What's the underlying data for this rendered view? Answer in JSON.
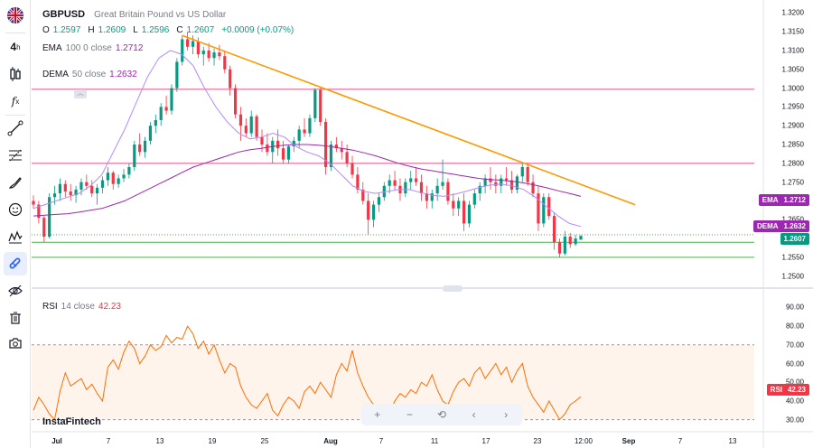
{
  "header": {
    "symbol": "GBPUSD",
    "description": "Great Britain Pound vs US Dollar",
    "ohlc": {
      "o_label": "O",
      "o": "1.2597",
      "h_label": "H",
      "h": "1.2609",
      "l_label": "L",
      "l": "1.2596",
      "c_label": "C",
      "c": "1.2607",
      "change": "+0.0009 (+0.07%)"
    }
  },
  "indicators": {
    "ema": {
      "name": "EMA",
      "params": "100  0  close",
      "value": "1.2712"
    },
    "dema": {
      "name": "DEMA",
      "params": "50  close",
      "value": "1.2632"
    },
    "rsi": {
      "name": "RSI",
      "params": "14  close",
      "value": "42.23"
    }
  },
  "price_tags": {
    "ema": {
      "label": "EMA",
      "value": "1.2712",
      "color": "#9c27b0"
    },
    "dema": {
      "label": "DEMA",
      "value": "1.2632",
      "color": "#9c27b0"
    },
    "last": {
      "value": "1.2607",
      "color": "#089981"
    },
    "rsi": {
      "label": "RSI",
      "value": "42.23",
      "color": "#f23645"
    }
  },
  "y_axis_price": [
    "1.3200",
    "1.3150",
    "1.3100",
    "1.3050",
    "1.3000",
    "1.2950",
    "1.2900",
    "1.2850",
    "1.2800",
    "1.2750",
    "1.2700",
    "1.2650",
    "1.2600",
    "1.2550",
    "1.2500"
  ],
  "y_axis_rsi": [
    "90.00",
    "80.00",
    "70.00",
    "60.00",
    "50.00",
    "40.00",
    "30.00"
  ],
  "x_axis": [
    "Jul",
    "7",
    "13",
    "19",
    "25",
    "Aug",
    "7",
    "11",
    "17",
    "23",
    "12:00",
    "Sep",
    "7",
    "13"
  ],
  "brand": "InstaFintech",
  "zoom_controls": [
    "+",
    "−",
    "⟲",
    "‹",
    "›"
  ],
  "colors": {
    "up": "#089981",
    "down": "#f23645",
    "ema": "#9c27b0",
    "trendline": "#ff9800",
    "hline": "#f06292",
    "support": "#4caf50",
    "rsi": "#ff6d00"
  },
  "chart_data": {
    "type": "candlestick",
    "symbol": "GBPUSD",
    "price_range": [
      1.248,
      1.322
    ],
    "rsi_range": [
      25,
      95
    ],
    "horizontal_levels": [
      1.2997,
      1.28,
      1.261,
      1.259,
      1.255
    ],
    "trendline": {
      "from": 1.314,
      "to": 1.269
    },
    "ohlc": [
      [
        1.27,
        1.2715,
        1.268,
        1.269
      ],
      [
        1.269,
        1.27,
        1.264,
        1.2655
      ],
      [
        1.2655,
        1.266,
        1.259,
        1.2605
      ],
      [
        1.2605,
        1.272,
        1.26,
        1.271
      ],
      [
        1.271,
        1.274,
        1.269,
        1.272
      ],
      [
        1.272,
        1.276,
        1.27,
        1.2745
      ],
      [
        1.2745,
        1.2755,
        1.271,
        1.2725
      ],
      [
        1.2725,
        1.2745,
        1.27,
        1.2715
      ],
      [
        1.2715,
        1.274,
        1.2695,
        1.273
      ],
      [
        1.273,
        1.276,
        1.2715,
        1.275
      ],
      [
        1.275,
        1.277,
        1.273,
        1.274
      ],
      [
        1.274,
        1.2755,
        1.271,
        1.272
      ],
      [
        1.272,
        1.2745,
        1.269,
        1.2735
      ],
      [
        1.2735,
        1.2765,
        1.272,
        1.2755
      ],
      [
        1.2755,
        1.279,
        1.274,
        1.2775
      ],
      [
        1.2775,
        1.278,
        1.273,
        1.2745
      ],
      [
        1.2745,
        1.277,
        1.2735,
        1.276
      ],
      [
        1.276,
        1.2785,
        1.275,
        1.277
      ],
      [
        1.277,
        1.28,
        1.276,
        1.279
      ],
      [
        1.279,
        1.286,
        1.278,
        1.285
      ],
      [
        1.285,
        1.288,
        1.282,
        1.283
      ],
      [
        1.283,
        1.287,
        1.2815,
        1.286
      ],
      [
        1.286,
        1.291,
        1.285,
        1.29
      ],
      [
        1.29,
        1.293,
        1.288,
        1.2915
      ],
      [
        1.2915,
        1.296,
        1.29,
        1.295
      ],
      [
        1.295,
        1.298,
        1.293,
        1.294
      ],
      [
        1.294,
        1.301,
        1.293,
        1.3
      ],
      [
        1.3,
        1.308,
        1.299,
        1.307
      ],
      [
        1.307,
        1.314,
        1.306,
        1.313
      ],
      [
        1.313,
        1.315,
        1.31,
        1.311
      ],
      [
        1.311,
        1.314,
        1.309,
        1.3125
      ],
      [
        1.3125,
        1.3135,
        1.308,
        1.309
      ],
      [
        1.309,
        1.311,
        1.306,
        1.31
      ],
      [
        1.31,
        1.312,
        1.307,
        1.308
      ],
      [
        1.308,
        1.3105,
        1.306,
        1.3095
      ],
      [
        1.3095,
        1.3115,
        1.3075,
        1.3085
      ],
      [
        1.3085,
        1.31,
        1.304,
        1.305
      ],
      [
        1.305,
        1.306,
        1.298,
        1.3
      ],
      [
        1.3,
        1.301,
        1.292,
        1.293
      ],
      [
        1.293,
        1.295,
        1.286,
        1.29
      ],
      [
        1.29,
        1.292,
        1.287,
        1.288
      ],
      [
        1.288,
        1.294,
        1.287,
        1.2925
      ],
      [
        1.2925,
        1.293,
        1.286,
        1.287
      ],
      [
        1.287,
        1.289,
        1.283,
        1.285
      ],
      [
        1.285,
        1.288,
        1.282,
        1.283
      ],
      [
        1.283,
        1.287,
        1.28,
        1.286
      ],
      [
        1.286,
        1.289,
        1.282,
        1.284
      ],
      [
        1.284,
        1.286,
        1.28,
        1.281
      ],
      [
        1.281,
        1.285,
        1.28,
        1.2845
      ],
      [
        1.2845,
        1.287,
        1.283,
        1.286
      ],
      [
        1.286,
        1.29,
        1.284,
        1.289
      ],
      [
        1.289,
        1.292,
        1.287,
        1.288
      ],
      [
        1.288,
        1.293,
        1.287,
        1.292
      ],
      [
        1.292,
        1.3,
        1.291,
        1.2995
      ],
      [
        1.2995,
        1.3,
        1.29,
        1.291
      ],
      [
        1.291,
        1.292,
        1.277,
        1.279
      ],
      [
        1.279,
        1.286,
        1.278,
        1.285
      ],
      [
        1.285,
        1.287,
        1.283,
        1.284
      ],
      [
        1.284,
        1.286,
        1.281,
        1.283
      ],
      [
        1.283,
        1.285,
        1.279,
        1.28
      ],
      [
        1.28,
        1.282,
        1.276,
        1.277
      ],
      [
        1.277,
        1.279,
        1.272,
        1.273
      ],
      [
        1.273,
        1.275,
        1.269,
        1.27
      ],
      [
        1.27,
        1.272,
        1.261,
        1.265
      ],
      [
        1.265,
        1.27,
        1.263,
        1.269
      ],
      [
        1.269,
        1.272,
        1.267,
        1.271
      ],
      [
        1.271,
        1.275,
        1.27,
        1.274
      ],
      [
        1.274,
        1.277,
        1.272,
        1.2755
      ],
      [
        1.2755,
        1.278,
        1.273,
        1.274
      ],
      [
        1.274,
        1.276,
        1.27,
        1.272
      ],
      [
        1.272,
        1.276,
        1.271,
        1.275
      ],
      [
        1.275,
        1.278,
        1.273,
        1.276
      ],
      [
        1.276,
        1.279,
        1.274,
        1.275
      ],
      [
        1.275,
        1.277,
        1.27,
        1.272
      ],
      [
        1.272,
        1.274,
        1.268,
        1.27
      ],
      [
        1.27,
        1.273,
        1.268,
        1.272
      ],
      [
        1.272,
        1.276,
        1.27,
        1.274
      ],
      [
        1.274,
        1.281,
        1.273,
        1.275
      ],
      [
        1.275,
        1.276,
        1.269,
        1.27
      ],
      [
        1.27,
        1.272,
        1.266,
        1.268
      ],
      [
        1.268,
        1.271,
        1.266,
        1.27
      ],
      [
        1.27,
        1.272,
        1.262,
        1.264
      ],
      [
        1.264,
        1.27,
        1.263,
        1.269
      ],
      [
        1.269,
        1.273,
        1.268,
        1.272
      ],
      [
        1.272,
        1.275,
        1.27,
        1.274
      ],
      [
        1.274,
        1.277,
        1.272,
        1.276
      ],
      [
        1.276,
        1.279,
        1.273,
        1.275
      ],
      [
        1.275,
        1.277,
        1.272,
        1.274
      ],
      [
        1.274,
        1.277,
        1.272,
        1.276
      ],
      [
        1.276,
        1.279,
        1.274,
        1.2755
      ],
      [
        1.2755,
        1.278,
        1.272,
        1.273
      ],
      [
        1.273,
        1.277,
        1.272,
        1.2765
      ],
      [
        1.2765,
        1.28,
        1.275,
        1.279
      ],
      [
        1.279,
        1.28,
        1.274,
        1.275
      ],
      [
        1.275,
        1.277,
        1.271,
        1.272
      ],
      [
        1.272,
        1.274,
        1.262,
        1.264
      ],
      [
        1.264,
        1.272,
        1.263,
        1.271
      ],
      [
        1.271,
        1.272,
        1.265,
        1.266
      ],
      [
        1.266,
        1.267,
        1.257,
        1.259
      ],
      [
        1.259,
        1.26,
        1.255,
        1.256
      ],
      [
        1.256,
        1.262,
        1.2555,
        1.2605
      ],
      [
        1.2605,
        1.2615,
        1.2575,
        1.2585
      ],
      [
        1.2585,
        1.261,
        1.258,
        1.26
      ],
      [
        1.2597,
        1.2609,
        1.2596,
        1.2607
      ]
    ],
    "ema_values": [
      1.266,
      1.2662,
      1.2664,
      1.2666,
      1.267,
      1.2675,
      1.268,
      1.269,
      1.27,
      1.2715,
      1.273,
      1.2745,
      1.276,
      1.2775,
      1.279,
      1.28,
      1.281,
      1.282,
      1.283,
      1.2836,
      1.284,
      1.2845,
      1.2848,
      1.285,
      1.285,
      1.2848,
      1.2845,
      1.284,
      1.2835,
      1.2828,
      1.282,
      1.281,
      1.28,
      1.2792,
      1.2785,
      1.278,
      1.2775,
      1.277,
      1.2765,
      1.276,
      1.2757,
      1.2755,
      1.2752,
      1.2748,
      1.2742,
      1.2735,
      1.2727,
      1.272,
      1.2712
    ],
    "dema_values": [
      1.268,
      1.269,
      1.27,
      1.271,
      1.272,
      1.274,
      1.277,
      1.283,
      1.289,
      1.296,
      1.303,
      1.308,
      1.31,
      1.309,
      1.306,
      1.3,
      1.295,
      1.291,
      1.288,
      1.2865,
      1.287,
      1.288,
      1.287,
      1.2845,
      1.283,
      1.282,
      1.28,
      1.277,
      1.274,
      1.2725,
      1.272,
      1.2725,
      1.273,
      1.273,
      1.2722,
      1.2715,
      1.2712,
      1.2718,
      1.2726,
      1.2735,
      1.2742,
      1.2745,
      1.274,
      1.273,
      1.271,
      1.2685,
      1.266,
      1.264,
      1.2632
    ],
    "rsi_values": [
      35,
      42,
      38,
      33,
      30,
      45,
      55,
      48,
      50,
      52,
      46,
      49,
      44,
      40,
      58,
      62,
      57,
      66,
      72,
      68,
      60,
      64,
      70,
      67,
      69,
      75,
      71,
      74,
      73,
      80,
      76,
      68,
      72,
      65,
      70,
      62,
      55,
      60,
      58,
      48,
      42,
      38,
      36,
      40,
      44,
      35,
      32,
      38,
      42,
      40,
      36,
      45,
      48,
      44,
      50,
      46,
      42,
      54,
      60,
      56,
      67,
      55,
      48,
      42,
      38,
      33,
      30,
      34,
      40,
      44,
      42,
      46,
      44,
      50,
      48,
      54,
      46,
      40,
      38,
      45,
      50,
      52,
      48,
      55,
      58,
      52,
      56,
      60,
      54,
      58,
      50,
      56,
      60,
      48,
      42,
      38,
      34,
      40,
      35,
      30,
      33,
      38,
      40,
      42.23
    ],
    "rsi_levels": {
      "upper": 70,
      "lower": 30
    }
  }
}
